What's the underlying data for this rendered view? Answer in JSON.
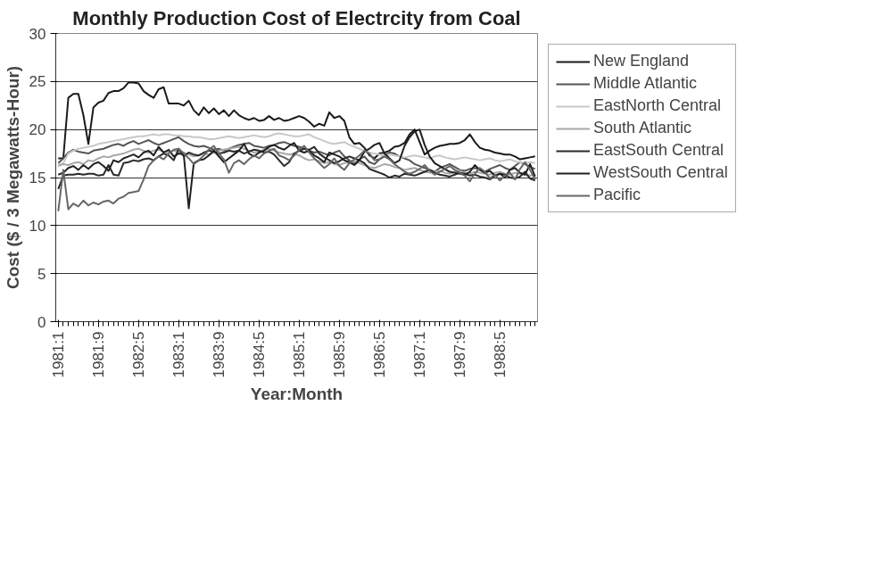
{
  "chart_data": {
    "type": "line",
    "title": "Monthly Production Cost of Electrcity from Coal",
    "xlabel": "Year:Month",
    "ylabel": "Cost ($ / 3 Megawatts-Hour)",
    "categories": [
      "1981:1",
      null,
      null,
      null,
      null,
      null,
      null,
      null,
      "1981:9",
      null,
      null,
      null,
      null,
      null,
      null,
      null,
      "1982:5",
      null,
      null,
      null,
      null,
      null,
      null,
      null,
      "1983:1",
      null,
      null,
      null,
      null,
      null,
      null,
      null,
      "1983:9",
      null,
      null,
      null,
      null,
      null,
      null,
      null,
      "1984:5",
      null,
      null,
      null,
      null,
      null,
      null,
      null,
      "1985:1",
      null,
      null,
      null,
      null,
      null,
      null,
      null,
      "1985:9",
      null,
      null,
      null,
      null,
      null,
      null,
      null,
      "1986:5",
      null,
      null,
      null,
      null,
      null,
      null,
      null,
      "1987:1",
      null,
      null,
      null,
      null,
      null,
      null,
      null,
      "1987:9",
      null,
      null,
      null,
      null,
      null,
      null,
      null,
      "1988:5",
      null,
      null,
      null,
      null,
      null,
      null,
      null
    ],
    "ylim": [
      0,
      30
    ],
    "yticks": [
      0,
      5,
      10,
      15,
      20,
      25,
      30
    ],
    "grid": "y",
    "legend": "right",
    "line_style": "solid",
    "marker": "none",
    "series": [
      {
        "name": "New England",
        "color": "#1a1a1a",
        "values": [
          17,
          17,
          23.3,
          23.7,
          23.7,
          21.5,
          18.5,
          22.3,
          22.8,
          23,
          23.8,
          24,
          24,
          24.3,
          24.9,
          24.9,
          24.8,
          24,
          23.6,
          23.3,
          24.2,
          24.4,
          22.7,
          22.7,
          22.7,
          22.5,
          23,
          22,
          21.5,
          22.3,
          21.7,
          22.2,
          21.6,
          22,
          21.4,
          22,
          21.5,
          21.2,
          21,
          21.2,
          20.9,
          21,
          21.4,
          21,
          21.2,
          20.9,
          21,
          21.2,
          21.4,
          21.2,
          20.8,
          20.3,
          20.6,
          20.4,
          21.8,
          21.2,
          21.4,
          20.9,
          19.2,
          18.5,
          18.6,
          18.1,
          17.3,
          17,
          17.5,
          17.6,
          17.8,
          18.2,
          18.3,
          18.6,
          19.5,
          20,
          18.7,
          17.4,
          17.8,
          18.1,
          18.3,
          18.4,
          18.5,
          18.5,
          18.6,
          18.9,
          19.5,
          18.7,
          18.1,
          17.9,
          17.8,
          17.6,
          17.5,
          17.4,
          17.4,
          17.2,
          16.9,
          17,
          17.1,
          17.2
        ]
      },
      {
        "name": "Middle Atlantic",
        "color": "#555555",
        "values": [
          16.5,
          17,
          17.6,
          17.9,
          17.7,
          17.6,
          17.5,
          17.8,
          17.9,
          18,
          18.2,
          18.4,
          18.5,
          18.3,
          18.6,
          18.8,
          18.5,
          18.7,
          18.9,
          18.6,
          18.4,
          18.6,
          18.8,
          19,
          19.2,
          18.8,
          18.5,
          18.3,
          18.2,
          18.3,
          18.1,
          17.9,
          18,
          17.8,
          18,
          18.2,
          18.4,
          18.5,
          18.6,
          18.3,
          18.2,
          18.1,
          18.3,
          18.4,
          18.6,
          18.7,
          18.5,
          18.3,
          18.2,
          18,
          17.8,
          17.6,
          17.7,
          17.5,
          17.3,
          17.6,
          17.8,
          17.2,
          16.8,
          16.5,
          16.9,
          17.2,
          16.6,
          16.4,
          16.9,
          17.3,
          17.6,
          17.5,
          17.2,
          17,
          16.8,
          16.4,
          16.2,
          16,
          15.8,
          15.6,
          16,
          16.2,
          16.4,
          16.1,
          15.8,
          15.7,
          15.9,
          16,
          15.8,
          15.6,
          15.9,
          16.1,
          16.3,
          16,
          15.8,
          16.2,
          16.6,
          16.4,
          16.1,
          15.9
        ]
      },
      {
        "name": "EastNorth Central",
        "color": "#c8c8c8",
        "values": [
          16.3,
          16.5,
          17.5,
          17.8,
          18,
          18.1,
          18.2,
          18.3,
          18.5,
          18.6,
          18.7,
          18.8,
          18.9,
          19,
          19.1,
          19.2,
          19.3,
          19.3,
          19.4,
          19.5,
          19.4,
          19.5,
          19.5,
          19.4,
          19.4,
          19.3,
          19.3,
          19.2,
          19.2,
          19.1,
          19,
          19,
          19.1,
          19.2,
          19.3,
          19.2,
          19.1,
          19.2,
          19.3,
          19.4,
          19.3,
          19.2,
          19.3,
          19.5,
          19.6,
          19.5,
          19.4,
          19.3,
          19.3,
          19.4,
          19.5,
          19.2,
          19,
          18.8,
          18.6,
          18.5,
          18.6,
          18.7,
          18.4,
          18.2,
          18,
          17.8,
          17.6,
          17.5,
          17.4,
          17.3,
          17.4,
          17.3,
          17.2,
          17.1,
          17.2,
          17.3,
          17.2,
          17.1,
          17,
          17.2,
          17.3,
          17.1,
          17,
          16.9,
          17,
          17.1,
          17,
          16.9,
          16.8,
          16.9,
          17,
          16.8,
          16.7,
          16.8,
          16.9,
          16.7,
          16.6,
          16.5,
          16.6,
          16.5
        ]
      },
      {
        "name": "South Atlantic",
        "color": "#a8a8a8",
        "values": [
          16.2,
          16.4,
          16.3,
          16.5,
          16.6,
          16.4,
          16.8,
          16.7,
          17,
          17.2,
          17.1,
          17.3,
          17.4,
          17.5,
          17.7,
          17.9,
          18,
          17.8,
          17.6,
          17.8,
          17.9,
          17.7,
          17.6,
          17.8,
          17.7,
          17.6,
          17.4,
          17.2,
          17.3,
          17.5,
          17.4,
          17.6,
          17.8,
          17.9,
          18,
          18.1,
          18.2,
          18,
          17.8,
          17.6,
          17.7,
          17.9,
          18,
          17.8,
          17.6,
          17.5,
          17.4,
          17.5,
          17.3,
          17,
          16.8,
          16.9,
          16.7,
          16.5,
          16.6,
          16.4,
          16.3,
          16.5,
          16.6,
          16.7,
          16.5,
          16.3,
          16.1,
          16,
          16.2,
          16.4,
          16.3,
          16.1,
          16,
          15.8,
          15.9,
          16,
          15.8,
          15.6,
          15.5,
          15.6,
          15.7,
          15.5,
          15.4,
          15.6,
          15.7,
          15.5,
          15.4,
          15.6,
          15.5,
          15.4,
          15.3,
          15.5,
          15.6,
          15.4,
          15.3,
          15.5,
          15.4,
          15.3,
          15.2,
          15.3
        ]
      },
      {
        "name": "EastSouth Central",
        "color": "#2a2a2a",
        "values": [
          13.8,
          15.2,
          15.3,
          15.3,
          15.4,
          15.3,
          15.4,
          15.4,
          15.2,
          15.3,
          16.3,
          15.3,
          15.2,
          16.5,
          16.6,
          16.8,
          16.7,
          16.9,
          17,
          16.8,
          17.2,
          17.5,
          17.3,
          16.8,
          18,
          17.2,
          17.6,
          17.4,
          17.3,
          17.6,
          17.8,
          17.7,
          17.5,
          17.6,
          17.8,
          17.7,
          17.8,
          17.5,
          17.7,
          17.9,
          17.8,
          17.6,
          17.7,
          17.4,
          16.8,
          16.2,
          16.6,
          17.5,
          17.8,
          18,
          17.9,
          18.2,
          17.5,
          17.1,
          16.8,
          16.5,
          16.7,
          17,
          17.2,
          17,
          16.8,
          16.5,
          15.9,
          15.7,
          15.5,
          15.3,
          15,
          15.2,
          15.1,
          15.4,
          15.3,
          15.2,
          15.4,
          15.6,
          15.8,
          15.5,
          15.3,
          15.2,
          15.1,
          15.3,
          15.5,
          15.4,
          15.2,
          15.3,
          15.1,
          15,
          14.8,
          15.2,
          15.4,
          15.3,
          15,
          14.9,
          15.1,
          15.6,
          14.9,
          14.7
        ]
      },
      {
        "name": "WestSouth Central",
        "color": "#202020",
        "values": [
          15.3,
          15.5,
          16,
          16.2,
          15.8,
          16.3,
          15.9,
          16.4,
          16.6,
          16.2,
          15.7,
          16.8,
          16.6,
          17,
          17.2,
          17.4,
          17.1,
          17.6,
          17.8,
          17.3,
          18.2,
          17.6,
          17.9,
          17.2,
          17.5,
          17.4,
          11.8,
          16.5,
          16.8,
          16.9,
          17.3,
          17.8,
          17.2,
          16.6,
          17,
          17.4,
          17.8,
          18.5,
          17.5,
          17.2,
          17.6,
          17.8,
          18.2,
          18.4,
          18.1,
          17.9,
          18.3,
          18.6,
          17.8,
          17.6,
          17.8,
          17.3,
          17,
          16.6,
          17.6,
          17.4,
          17.2,
          16.8,
          16.6,
          16.3,
          16.8,
          17.7,
          18,
          18.4,
          18.6,
          17.5,
          17,
          16.5,
          16.8,
          18.3,
          19.2,
          19.8,
          20,
          18.4,
          17.2,
          16.5,
          16.2,
          15.9,
          15.6,
          15.5,
          15.4,
          15.3,
          15.6,
          16.3,
          15.8,
          15.5,
          15.7,
          15.2,
          15.4,
          15,
          15.8,
          16,
          15.5,
          15.3,
          16.4,
          15.1
        ]
      },
      {
        "name": "Pacific",
        "color": "#666666",
        "values": [
          11.5,
          15.8,
          11.7,
          12.3,
          12,
          12.6,
          12.1,
          12.4,
          12.2,
          12.5,
          12.6,
          12.3,
          12.8,
          13,
          13.4,
          13.5,
          13.6,
          14.8,
          16.2,
          16.8,
          17.2,
          16.9,
          17.5,
          17.9,
          18,
          17.5,
          17,
          16.4,
          16.8,
          17.3,
          17.9,
          18.3,
          17.5,
          16.9,
          15.5,
          16.5,
          16.8,
          16.4,
          16.9,
          17.3,
          17,
          17.5,
          17.8,
          18,
          17.3,
          17.1,
          16.8,
          17.3,
          17.9,
          18.3,
          17.6,
          17,
          16.5,
          16,
          16.4,
          17,
          16.2,
          15.8,
          16.5,
          16.9,
          17.3,
          17.8,
          17.5,
          16.8,
          16.9,
          17.2,
          16.9,
          16.4,
          16,
          15.6,
          15.4,
          15.6,
          15.9,
          16.3,
          15.7,
          15.3,
          15.6,
          15.9,
          16.2,
          15.8,
          15.5,
          15.2,
          14.6,
          15.4,
          16,
          15.6,
          14.9,
          15.3,
          14.7,
          15.2,
          15.5,
          14.8,
          15.9,
          16.6,
          15.8,
          14.8
        ]
      }
    ]
  }
}
